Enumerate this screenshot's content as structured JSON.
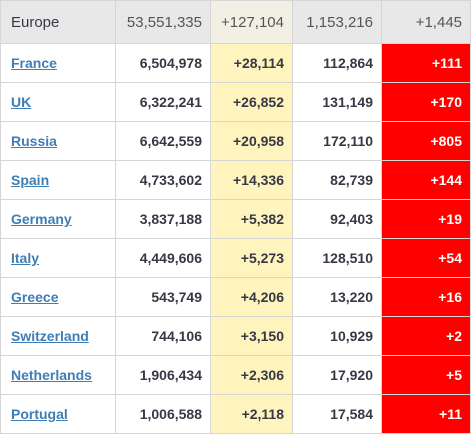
{
  "table": {
    "header": [
      "Europe",
      "53,551,335",
      "+127,104",
      "1,153,216",
      "+1,445"
    ],
    "rows": [
      [
        "France",
        "6,504,978",
        "+28,114",
        "112,864",
        "+111"
      ],
      [
        "UK",
        "6,322,241",
        "+26,852",
        "131,149",
        "+170"
      ],
      [
        "Russia",
        "6,642,559",
        "+20,958",
        "172,110",
        "+805"
      ],
      [
        "Spain",
        "4,733,602",
        "+14,336",
        "82,739",
        "+144"
      ],
      [
        "Germany",
        "3,837,188",
        "+5,382",
        "92,403",
        "+19"
      ],
      [
        "Italy",
        "4,449,606",
        "+5,273",
        "128,510",
        "+54"
      ],
      [
        "Greece",
        "543,749",
        "+4,206",
        "13,220",
        "+16"
      ],
      [
        "Switzerland",
        "744,106",
        "+3,150",
        "10,929",
        "+2"
      ],
      [
        "Netherlands",
        "1,906,434",
        "+2,306",
        "17,920",
        "+5"
      ],
      [
        "Portugal",
        "1,006,588",
        "+2,118",
        "17,584",
        "+11"
      ]
    ]
  }
}
